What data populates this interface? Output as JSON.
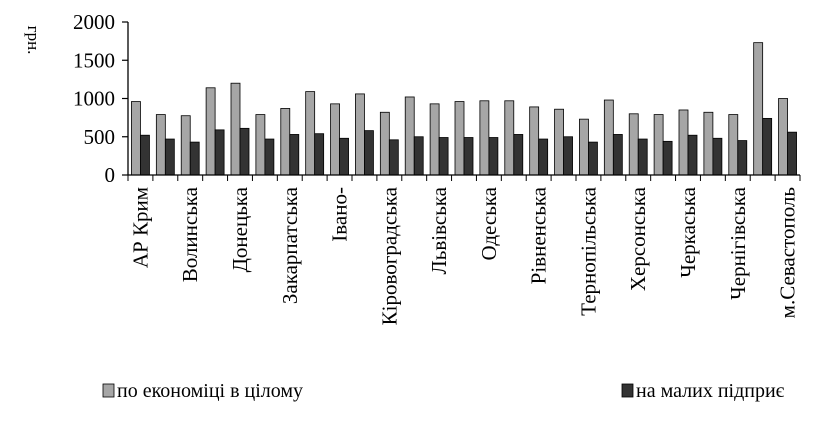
{
  "chart_data": {
    "type": "bar",
    "ylabel": "грн.",
    "ylim": [
      0,
      2000
    ],
    "yticks": [
      0,
      500,
      1000,
      1500,
      2000
    ],
    "categories": [
      "АР Крим",
      "",
      "Волинська",
      "",
      "Донецька",
      "",
      "Закарпатська",
      "",
      "Івано-",
      "",
      "Кіровоградська",
      "",
      "Львівська",
      "",
      "Одеська",
      "",
      "Рівненська",
      "",
      "Тернопільська",
      "",
      "Херсонська",
      "",
      "Черкаська",
      "",
      "Чернігівська",
      "",
      "м.Севастополь"
    ],
    "series": [
      {
        "name": "по економіці в цілому",
        "color": "#a6a6a6",
        "values": [
          960,
          790,
          775,
          1140,
          1200,
          790,
          870,
          1090,
          930,
          1060,
          820,
          1020,
          930,
          960,
          970,
          970,
          890,
          860,
          730,
          980,
          800,
          790,
          850,
          820,
          790,
          1730,
          1000
        ]
      },
      {
        "name": "на малих підприє",
        "color": "#333333",
        "values": [
          520,
          470,
          430,
          590,
          610,
          470,
          530,
          540,
          480,
          580,
          460,
          500,
          490,
          490,
          490,
          530,
          470,
          500,
          430,
          530,
          470,
          440,
          520,
          480,
          450,
          740,
          560
        ]
      }
    ],
    "grid": false,
    "legend": "bottom"
  }
}
